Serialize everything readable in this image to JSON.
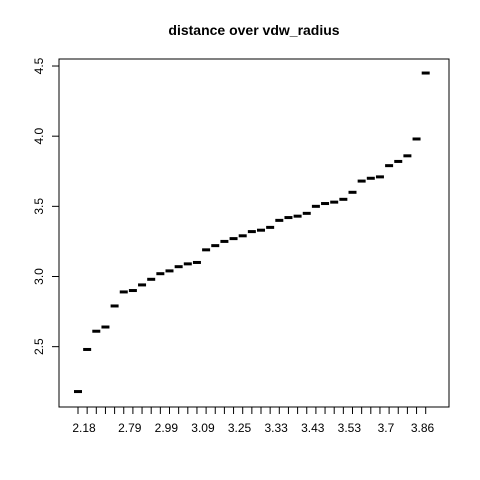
{
  "chart_data": {
    "type": "boxplot",
    "title": "distance over vdw_radius",
    "xlabel": "",
    "ylabel": "",
    "ylim": [
      2.07,
      4.55
    ],
    "yticks": [
      2.5,
      3.0,
      3.5,
      4.0,
      4.5
    ],
    "ytick_labels": [
      "2.5",
      "3.0",
      "3.5",
      "4.0",
      "4.5"
    ],
    "x_tick_labels_shown": [
      "2.18",
      "2.79",
      "2.99",
      "3.09",
      "3.25",
      "3.33",
      "3.43",
      "3.53",
      "3.7",
      "3.86"
    ],
    "n_groups": 39,
    "medians": [
      2.18,
      2.48,
      2.61,
      2.64,
      2.79,
      2.89,
      2.9,
      2.94,
      2.98,
      3.02,
      3.04,
      3.07,
      3.09,
      3.1,
      3.19,
      3.22,
      3.25,
      3.27,
      3.29,
      3.32,
      3.33,
      3.35,
      3.4,
      3.42,
      3.43,
      3.45,
      3.5,
      3.52,
      3.53,
      3.55,
      3.6,
      3.68,
      3.7,
      3.71,
      3.79,
      3.82,
      3.86,
      3.98,
      4.45
    ],
    "grid": false,
    "legend": "none"
  }
}
